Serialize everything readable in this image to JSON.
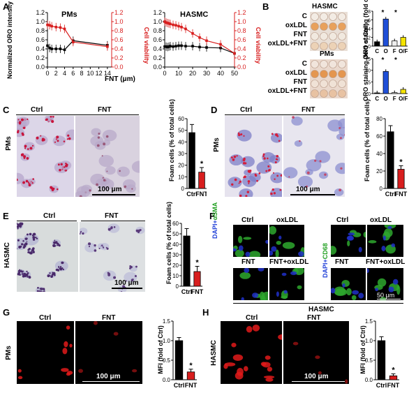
{
  "panels": {
    "A": {
      "label": "A"
    },
    "B": {
      "label": "B"
    },
    "C": {
      "label": "C"
    },
    "D": {
      "label": "D"
    },
    "E": {
      "label": "E"
    },
    "F": {
      "label": "F"
    },
    "G": {
      "label": "G"
    },
    "H": {
      "label": "H"
    }
  },
  "panelA": {
    "left_title": "PMs",
    "right_title": "HASMC",
    "ylabel_left": "Normalized ORO intensity",
    "ylabel_right": "Cell viability",
    "xlabel": "FNT (μm)",
    "left_xticks": [
      "0",
      "2",
      "4",
      "6",
      "8",
      "10",
      "12",
      "14"
    ],
    "right_xticks": [
      "0",
      "10",
      "20",
      "30",
      "40",
      "50"
    ],
    "left_yticks": [
      "0.0",
      "0.2",
      "0.4",
      "0.6",
      "0.8",
      "1.0",
      "1.2"
    ],
    "right_yticks": [
      "0.0",
      "0.2",
      "0.4",
      "0.6",
      "0.8",
      "1.0",
      "1.2"
    ]
  },
  "panelB": {
    "top_title": "HASMC",
    "bottom_title": "PMs",
    "rows": [
      "C",
      "oxLDL",
      "FNT",
      "oxLDL+FNT"
    ],
    "ylabel": "ORO staining (fold of Ctrl)",
    "categories": [
      "C",
      "O",
      "F",
      "O/F"
    ],
    "star": "*"
  },
  "panelC": {
    "col1": "Ctrl",
    "col2": "FNT",
    "rowlabel": "PMs",
    "scale": "100 μm",
    "ylabel": "Foam cells (% of total cells)",
    "categories": [
      "Ctrl",
      "FNT"
    ],
    "yticks": [
      "0",
      "10",
      "20",
      "30",
      "40",
      "50",
      "60"
    ],
    "star": "*"
  },
  "panelD": {
    "col1": "Ctrl",
    "col2": "FNT",
    "rowlabel": "PMs",
    "scale": "100 μm",
    "ylabel": "Foam cells (% of total cells)",
    "categories": [
      "Ctrl",
      "FNT"
    ],
    "yticks": [
      "0",
      "20",
      "40",
      "60",
      "80"
    ],
    "star": "*"
  },
  "panelE": {
    "col1": "Ctrl",
    "col2": "FNT",
    "rowlabel": "HASMC",
    "scale": "100 μm",
    "ylabel": "Foam cells (% of total cells)",
    "categories": [
      "Ctrl",
      "FNT"
    ],
    "yticks": [
      "0",
      "10",
      "20",
      "30",
      "40",
      "50",
      "60"
    ],
    "star": "*"
  },
  "panelF": {
    "left_cols": [
      "Ctrl",
      "oxLDL"
    ],
    "left_bottom": [
      "FNT",
      "FNT+oxLDL"
    ],
    "right_cols": [
      "Ctrl",
      "oxLDL"
    ],
    "right_bottom": [
      "FNT",
      "FNT+oxLDL"
    ],
    "left_stain_dapi": "DAPI+",
    "left_stain_marker": "αSMA",
    "right_stain_dapi": "DAPI+",
    "right_stain_marker": "CD68",
    "scale": "50 μm",
    "caption": "HASMC"
  },
  "panelG": {
    "col1": "Ctrl",
    "col2": "FNT",
    "rowlabel": "PMs",
    "scale": "100 μm",
    "ylabel": "MFI (fold of Ctrl)",
    "categories": [
      "Ctrl",
      "FNT"
    ],
    "yticks": [
      "0.0",
      "0.5",
      "1.0",
      "1.5"
    ],
    "star": "*"
  },
  "panelH": {
    "col1": "Ctrl",
    "col2": "FNT",
    "rowlabel": "HASMC",
    "scale": "100 μm",
    "ylabel": "MFI (fold of Ctrl)",
    "categories": [
      "Ctrl",
      "FNT"
    ],
    "yticks": [
      "0.0",
      "0.5",
      "1.0",
      "1.5"
    ],
    "star": "*"
  },
  "chart_data": [
    {
      "id": "A-PMs",
      "type": "line",
      "title": "PMs",
      "xlabel": "FNT (μm)",
      "ylabel": "Normalized ORO intensity",
      "y2label": "Cell viability",
      "xlim": [
        0,
        15
      ],
      "ylim": [
        0,
        1.2
      ],
      "series": [
        {
          "color": "#000000",
          "x": [
            0,
            0.5,
            1,
            2,
            3,
            4,
            6,
            14
          ],
          "values": [
            0.47,
            0.42,
            0.4,
            0.4,
            0.4,
            0.38,
            0.58,
            0.48
          ]
        },
        {
          "color": "#d81e1e",
          "x": [
            0,
            0.5,
            1,
            2,
            3,
            4,
            6,
            14
          ],
          "values": [
            0.93,
            0.92,
            0.9,
            0.88,
            0.87,
            0.84,
            0.55,
            0.45
          ]
        }
      ]
    },
    {
      "id": "A-HASMC",
      "type": "line",
      "title": "HASMC",
      "xlabel": "FNT (μm)",
      "ylabel": "Normalized ORO intensity",
      "y2label": "Cell viability",
      "xlim": [
        0,
        50
      ],
      "ylim": [
        0,
        1.2
      ],
      "series": [
        {
          "color": "#000000",
          "x": [
            0,
            1,
            2,
            3,
            4,
            6,
            8,
            10,
            12,
            15,
            20,
            25,
            30,
            40,
            50
          ],
          "values": [
            0.45,
            0.45,
            0.44,
            0.45,
            0.46,
            0.45,
            0.46,
            0.47,
            0.47,
            0.46,
            0.46,
            0.44,
            0.43,
            0.42,
            0.3
          ]
        },
        {
          "color": "#d81e1e",
          "x": [
            0,
            1,
            2,
            3,
            4,
            6,
            8,
            10,
            12,
            15,
            20,
            25,
            30,
            40,
            50
          ],
          "values": [
            1.0,
            0.98,
            0.97,
            0.96,
            0.95,
            0.93,
            0.92,
            0.9,
            0.88,
            0.84,
            0.74,
            0.65,
            0.58,
            0.5,
            0.3
          ]
        }
      ]
    },
    {
      "id": "B-HASMC",
      "type": "bar",
      "categories": [
        "C",
        "O",
        "F",
        "O/F"
      ],
      "values": [
        1.0,
        6.2,
        1.2,
        2.0
      ],
      "colors": [
        "#000000",
        "#1f4fd8",
        "#eeeeee",
        "#f5e400"
      ],
      "ylim": [
        0,
        8
      ],
      "yticks": [
        "0",
        "2",
        "4",
        "6",
        "8"
      ]
    },
    {
      "id": "B-PMs",
      "type": "bar",
      "categories": [
        "C",
        "O",
        "F",
        "O/F"
      ],
      "values": [
        0.3,
        9.5,
        0.4,
        1.8
      ],
      "colors": [
        "#000000",
        "#1f4fd8",
        "#eeeeee",
        "#f5e400"
      ],
      "ylim": [
        0,
        15
      ],
      "yticks": [
        "0",
        "5",
        "10",
        "15"
      ]
    },
    {
      "id": "C",
      "type": "bar",
      "categories": [
        "Ctrl",
        "FNT"
      ],
      "values": [
        48,
        14
      ],
      "errors": [
        7,
        4
      ],
      "colors": [
        "#000000",
        "#d81e1e"
      ],
      "ylim": [
        0,
        60
      ]
    },
    {
      "id": "D",
      "type": "bar",
      "categories": [
        "Ctrl",
        "FNT"
      ],
      "values": [
        65,
        22
      ],
      "errors": [
        7,
        4
      ],
      "colors": [
        "#000000",
        "#d81e1e"
      ],
      "ylim": [
        0,
        80
      ]
    },
    {
      "id": "E",
      "type": "bar",
      "categories": [
        "Ctrl",
        "FNT"
      ],
      "values": [
        48,
        14
      ],
      "errors": [
        7,
        5
      ],
      "colors": [
        "#000000",
        "#d81e1e"
      ],
      "ylim": [
        0,
        60
      ]
    },
    {
      "id": "G",
      "type": "bar",
      "categories": [
        "Ctrl",
        "FNT"
      ],
      "values": [
        1.0,
        0.2
      ],
      "errors": [
        0.08,
        0.07
      ],
      "colors": [
        "#000000",
        "#d81e1e"
      ],
      "ylim": [
        0,
        1.5
      ]
    },
    {
      "id": "H",
      "type": "bar",
      "categories": [
        "Ctrl",
        "FNT"
      ],
      "values": [
        1.0,
        0.1
      ],
      "errors": [
        0.1,
        0.05
      ],
      "colors": [
        "#000000",
        "#d81e1e"
      ],
      "ylim": [
        0,
        1.5
      ]
    }
  ]
}
